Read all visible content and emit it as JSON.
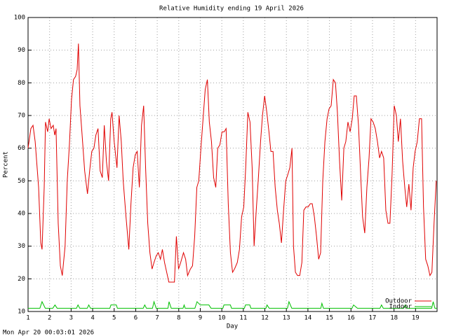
{
  "chart_data": {
    "type": "line",
    "title": "Relative Humidity ending 19 April 2026",
    "xlabel": "Day",
    "ylabel": "Percent",
    "footer": "Mon Apr 20 00:03:01 2026",
    "xlim": [
      1,
      20
    ],
    "ylim": [
      10,
      100
    ],
    "xticks": [
      1,
      2,
      3,
      4,
      5,
      6,
      7,
      8,
      9,
      10,
      11,
      12,
      13,
      14,
      15,
      16,
      17,
      18,
      19
    ],
    "yticks": [
      10,
      20,
      30,
      40,
      50,
      60,
      70,
      80,
      90,
      100
    ],
    "grid": true,
    "legend": "bottom-right",
    "series": [
      {
        "name": "Outdoor",
        "color": "#e00000",
        "x": [
          1.0,
          1.13,
          1.23,
          1.33,
          1.49,
          1.59,
          1.65,
          1.75,
          1.81,
          1.91,
          1.98,
          2.07,
          2.17,
          2.24,
          2.3,
          2.4,
          2.5,
          2.59,
          2.72,
          2.82,
          2.92,
          3.02,
          3.11,
          3.21,
          3.28,
          3.34,
          3.41,
          3.5,
          3.63,
          3.76,
          3.86,
          3.96,
          4.06,
          4.15,
          4.25,
          4.35,
          4.45,
          4.54,
          4.64,
          4.74,
          4.84,
          4.9,
          5.0,
          5.13,
          5.23,
          5.33,
          5.42,
          5.55,
          5.68,
          5.78,
          5.88,
          5.98,
          6.07,
          6.17,
          6.27,
          6.37,
          6.46,
          6.56,
          6.66,
          6.76,
          6.85,
          6.95,
          7.05,
          7.15,
          7.24,
          7.34,
          7.44,
          7.54,
          7.67,
          7.8,
          7.89,
          7.99,
          8.09,
          8.22,
          8.32,
          8.41,
          8.54,
          8.64,
          8.74,
          8.84,
          8.93,
          9.03,
          9.13,
          9.23,
          9.33,
          9.42,
          9.52,
          9.62,
          9.72,
          9.81,
          9.91,
          10.01,
          10.11,
          10.2,
          10.3,
          10.4,
          10.5,
          10.59,
          10.72,
          10.82,
          10.92,
          11.02,
          11.11,
          11.21,
          11.31,
          11.41,
          11.5,
          11.6,
          11.7,
          11.8,
          11.89,
          11.99,
          12.09,
          12.19,
          12.28,
          12.38,
          12.48,
          12.58,
          12.67,
          12.77,
          12.87,
          12.97,
          13.07,
          13.16,
          13.26,
          13.33,
          13.42,
          13.52,
          13.62,
          13.72,
          13.81,
          13.91,
          14.01,
          14.11,
          14.2,
          14.3,
          14.4,
          14.5,
          14.59,
          14.69,
          14.79,
          14.89,
          14.98,
          15.08,
          15.18,
          15.28,
          15.37,
          15.47,
          15.57,
          15.67,
          15.76,
          15.86,
          15.96,
          16.06,
          16.15,
          16.25,
          16.35,
          16.45,
          16.54,
          16.64,
          16.74,
          16.84,
          16.93,
          17.03,
          17.13,
          17.23,
          17.33,
          17.42,
          17.52,
          17.62,
          17.72,
          17.81,
          17.91,
          18.01,
          18.11,
          18.2,
          18.3,
          18.4,
          18.5,
          18.59,
          18.69,
          18.79,
          18.89,
          18.98,
          19.08,
          19.18,
          19.28,
          19.37,
          19.47,
          19.57,
          19.67,
          19.76,
          19.86,
          19.96
        ],
        "values": [
          60,
          66,
          67,
          62,
          48,
          31,
          29,
          48,
          68,
          65,
          69,
          66,
          67,
          64,
          66,
          37,
          24,
          21,
          30,
          50,
          61,
          75,
          81,
          82,
          84,
          92,
          73,
          65,
          53,
          46,
          53,
          59,
          60,
          64,
          66,
          53,
          51,
          67,
          56,
          50,
          69,
          71,
          62,
          54,
          70,
          62,
          50,
          39,
          29,
          43,
          54,
          58,
          59,
          48,
          67,
          73,
          54,
          37,
          28,
          23,
          25,
          27,
          28,
          26,
          29,
          25,
          22,
          19,
          19,
          19,
          33,
          23,
          25,
          28,
          26,
          21,
          23,
          24,
          33,
          48,
          50,
          60,
          69,
          78,
          81,
          68,
          62,
          51,
          48,
          60,
          61,
          65,
          65,
          66,
          43,
          28,
          22,
          23,
          25,
          29,
          39,
          42,
          54,
          71,
          68,
          54,
          30,
          41,
          51,
          62,
          70,
          76,
          71,
          65,
          59,
          59,
          48,
          41,
          37,
          31,
          41,
          50,
          52,
          54,
          60,
          30,
          22,
          21,
          21,
          25,
          41,
          42,
          42,
          43,
          43,
          39,
          33,
          26,
          28,
          50,
          62,
          69,
          72,
          73,
          81,
          80,
          71,
          56,
          44,
          60,
          62,
          68,
          65,
          69,
          76,
          76,
          67,
          52,
          39,
          34,
          48,
          57,
          69,
          68,
          66,
          62,
          57,
          59,
          57,
          41,
          37,
          37,
          52,
          73,
          70,
          62,
          69,
          56,
          48,
          42,
          49,
          41,
          54,
          59,
          62,
          69,
          69,
          42,
          26,
          24,
          21,
          22,
          37,
          50
        ]
      },
      {
        "name": "Indoor",
        "color": "#00c000",
        "x": [
          1,
          1.55,
          1.65,
          1.8,
          2.15,
          2.25,
          2.35,
          3.25,
          3.32,
          3.4,
          3.75,
          3.82,
          3.9,
          4.8,
          4.85,
          5.1,
          5.15,
          6.35,
          6.42,
          6.5,
          6.78,
          6.85,
          6.95,
          7.5,
          7.55,
          7.65,
          8.2,
          8.25,
          8.3,
          8.75,
          8.85,
          9.0,
          9.4,
          9.5,
          10.05,
          10.1,
          10.4,
          10.45,
          11.05,
          11.1,
          11.3,
          11.35,
          12.05,
          12.1,
          12.2,
          13.05,
          13.12,
          13.25,
          14.6,
          14.65,
          14.72,
          16.05,
          16.12,
          16.3,
          17.35,
          17.42,
          17.5,
          18.45,
          18.52,
          18.6,
          19.75,
          19.82,
          19.9,
          20
        ],
        "values": [
          11,
          11,
          13,
          11,
          11,
          12,
          11,
          11,
          12,
          11,
          11,
          12,
          11,
          11,
          12,
          12,
          11,
          11,
          12,
          11,
          11,
          13,
          11,
          11,
          13,
          11,
          11,
          12,
          11,
          11,
          13,
          12,
          12,
          11,
          11,
          12,
          12,
          11,
          11,
          12,
          12,
          11,
          11,
          12,
          11,
          11,
          13,
          11,
          11,
          12.5,
          11,
          11,
          12,
          11,
          11,
          12,
          11,
          11,
          12,
          11,
          11,
          13,
          11,
          11
        ]
      }
    ]
  }
}
